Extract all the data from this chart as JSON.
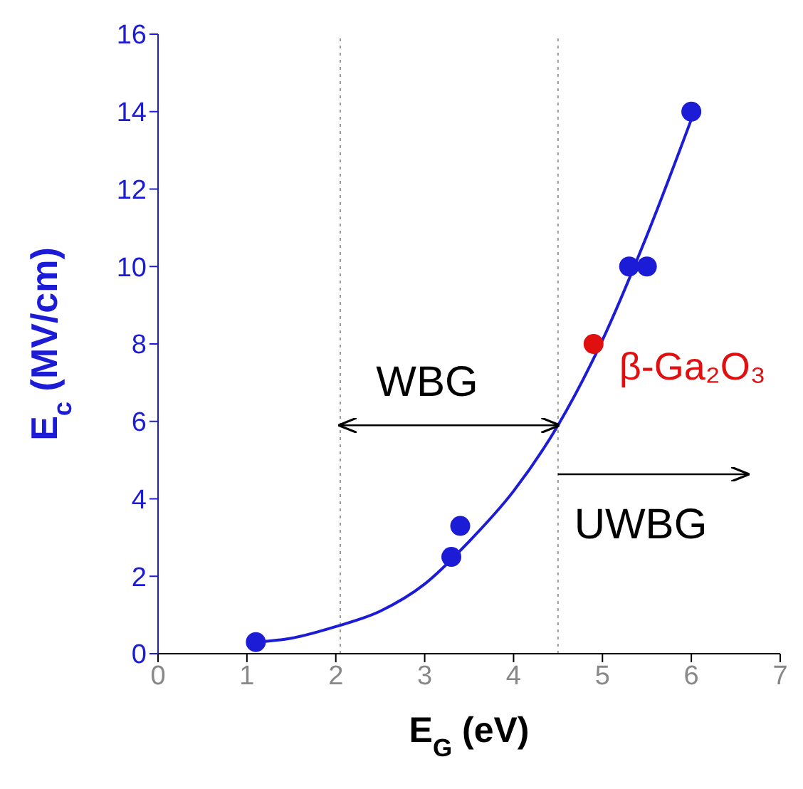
{
  "chart_data": {
    "type": "scatter",
    "xlabel": "E$_{G}$ (eV)",
    "ylabel": "E$_{c}$ (MV/cm)",
    "xlim": [
      0,
      7
    ],
    "xticks": [
      0,
      1,
      2,
      3,
      4,
      5,
      6,
      7
    ],
    "ylim": [
      0,
      16
    ],
    "yticks": [
      0,
      2,
      4,
      6,
      8,
      10,
      12,
      14,
      16
    ],
    "marker": "circle",
    "series": [
      {
        "type": "line",
        "marker": "none",
        "line_style": "solid",
        "color": "#1c1cd6",
        "x": [
          1.1,
          1.5,
          2,
          2.5,
          3,
          3.5,
          4,
          4.5,
          5,
          5.5,
          6
        ],
        "values": [
          0.3,
          0.4,
          0.7,
          1.1,
          1.8,
          2.9,
          4.2,
          5.9,
          8.1,
          10.8,
          13.8
        ]
      },
      {
        "color": "#1c1cd6",
        "x": [
          1.1,
          3.3,
          3.4,
          5.3,
          5.5,
          6
        ],
        "values": [
          0.3,
          2.5,
          3.3,
          10,
          10,
          14
        ]
      },
      {
        "name": "β-Ga₂O₃",
        "color": "#e01010",
        "x": [
          4.9
        ],
        "values": [
          8
        ]
      }
    ],
    "ref_lines": [
      {
        "axis": "x",
        "value": 2.05,
        "color": "#999999",
        "line_style": "dotted"
      },
      {
        "axis": "x",
        "value": 4.5,
        "color": "#999999",
        "line_style": "dotted"
      }
    ],
    "annotations": [
      {
        "text": "WBG",
        "x": 4.5,
        "y": 5.9
      },
      "UWBG"
    ]
  }
}
